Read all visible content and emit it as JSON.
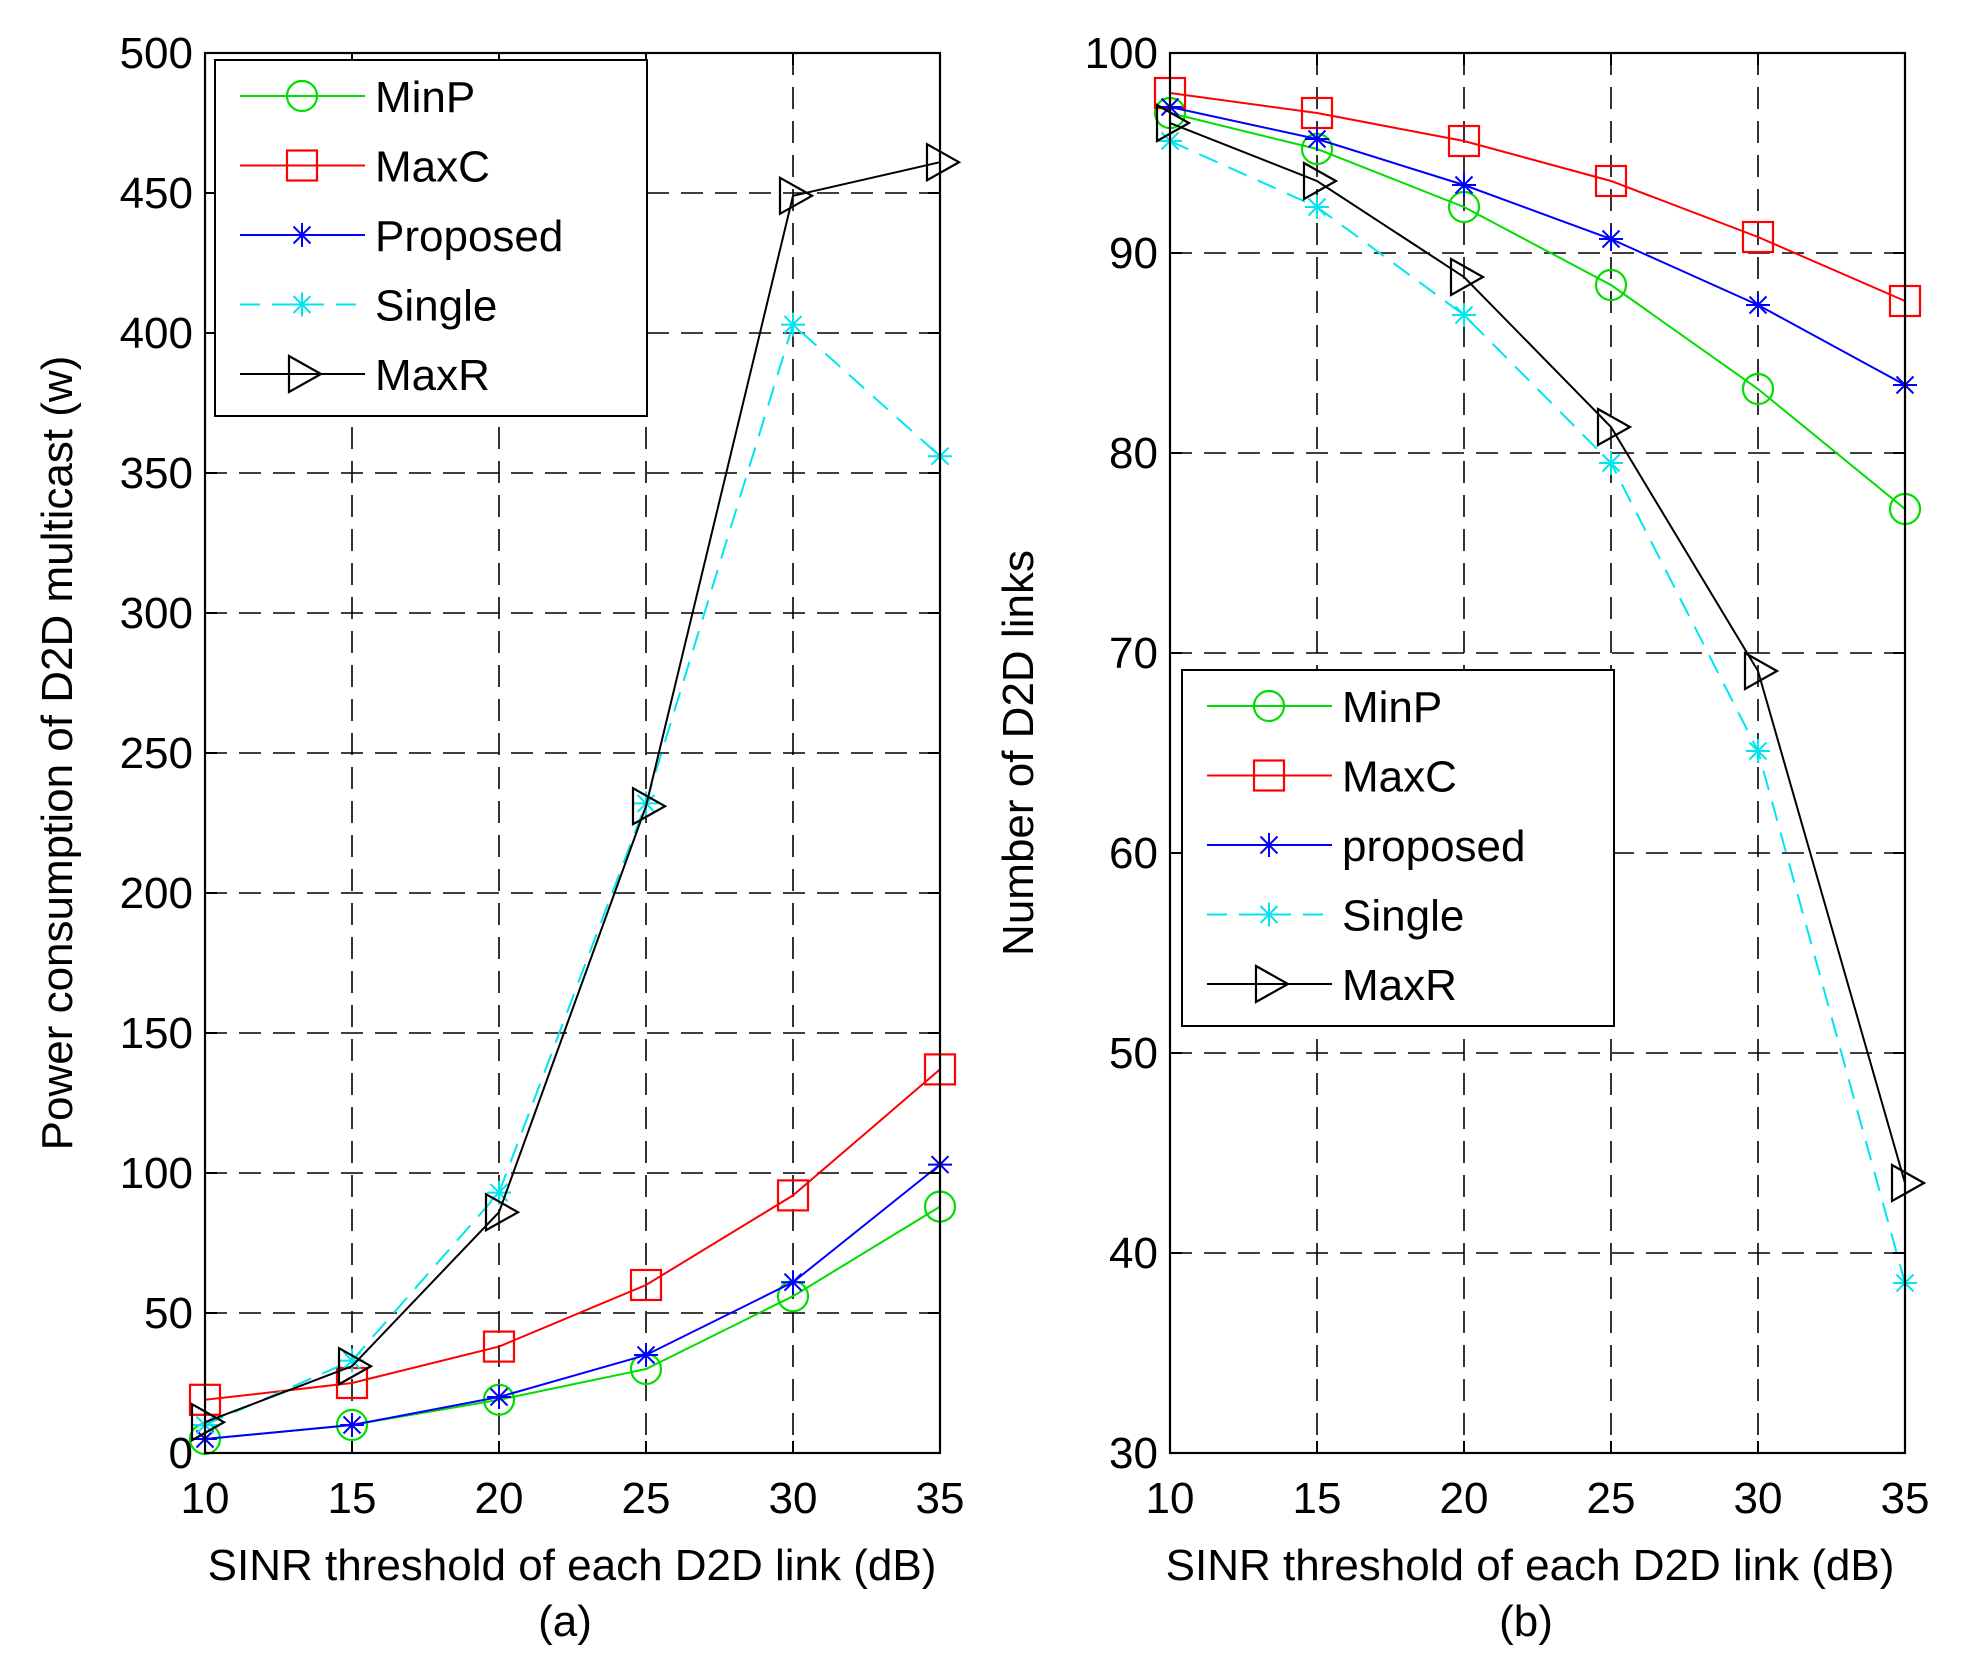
{
  "chart_data": [
    {
      "type": "line",
      "panel_caption": "(a)",
      "xlabel": "SINR threshold of each D2D link (dB)",
      "ylabel": "Power consumption of D2D multicast (w)",
      "x": [
        10,
        15,
        20,
        25,
        30,
        35
      ],
      "xlim": [
        10,
        35
      ],
      "ylim": [
        0,
        500
      ],
      "xticks": [
        "10",
        "15",
        "20",
        "25",
        "30",
        "35"
      ],
      "yticks": [
        "0",
        "50",
        "100",
        "150",
        "200",
        "250",
        "300",
        "350",
        "400",
        "450",
        "500"
      ],
      "grid": true,
      "legend_position": "top-left",
      "series": [
        {
          "name": "MinP",
          "color": "#00dd00",
          "marker": "circle",
          "dash": "solid",
          "values": [
            5,
            10,
            19,
            30,
            56,
            88
          ]
        },
        {
          "name": "MaxC",
          "color": "#ff0000",
          "marker": "square",
          "dash": "solid",
          "values": [
            19,
            25,
            38,
            60,
            92,
            137
          ]
        },
        {
          "name": "Proposed",
          "color": "#0000ff",
          "marker": "asterisk",
          "dash": "solid",
          "values": [
            5,
            10,
            20,
            35,
            61,
            103
          ]
        },
        {
          "name": "Single",
          "color": "#00e5ee",
          "marker": "asterisk",
          "dash": "dashed",
          "values": [
            10,
            33,
            93,
            232,
            403,
            356
          ]
        },
        {
          "name": "MaxR",
          "color": "#000000",
          "marker": "triangle-right",
          "dash": "solid",
          "values": [
            11,
            31,
            86,
            231,
            449,
            461
          ]
        }
      ]
    },
    {
      "type": "line",
      "panel_caption": "(b)",
      "xlabel": "SINR threshold of each D2D link (dB)",
      "ylabel": "Number of D2D links",
      "x": [
        10,
        15,
        20,
        25,
        30,
        35
      ],
      "xlim": [
        10,
        35
      ],
      "ylim": [
        30,
        100
      ],
      "xticks": [
        "10",
        "15",
        "20",
        "25",
        "30",
        "35"
      ],
      "yticks": [
        "30",
        "40",
        "50",
        "60",
        "70",
        "80",
        "90",
        "100"
      ],
      "grid": true,
      "legend_position": "center-left",
      "series": [
        {
          "name": "MinP",
          "color": "#00dd00",
          "marker": "circle",
          "dash": "solid",
          "values": [
            97.0,
            95.2,
            92.3,
            88.4,
            83.2,
            77.2
          ]
        },
        {
          "name": "MaxC",
          "color": "#ff0000",
          "marker": "square",
          "dash": "solid",
          "values": [
            98.0,
            97.0,
            95.6,
            93.6,
            90.8,
            87.6
          ]
        },
        {
          "name": "proposed",
          "color": "#0000ff",
          "marker": "asterisk",
          "dash": "solid",
          "values": [
            97.3,
            95.7,
            93.4,
            90.7,
            87.4,
            83.4
          ]
        },
        {
          "name": "Single",
          "color": "#00e5ee",
          "marker": "asterisk",
          "dash": "dashed",
          "values": [
            95.6,
            92.3,
            86.9,
            79.5,
            65.1,
            38.5
          ]
        },
        {
          "name": "MaxR",
          "color": "#000000",
          "marker": "triangle-right",
          "dash": "solid",
          "values": [
            96.5,
            93.6,
            88.8,
            81.3,
            69.1,
            43.5
          ]
        }
      ]
    }
  ]
}
